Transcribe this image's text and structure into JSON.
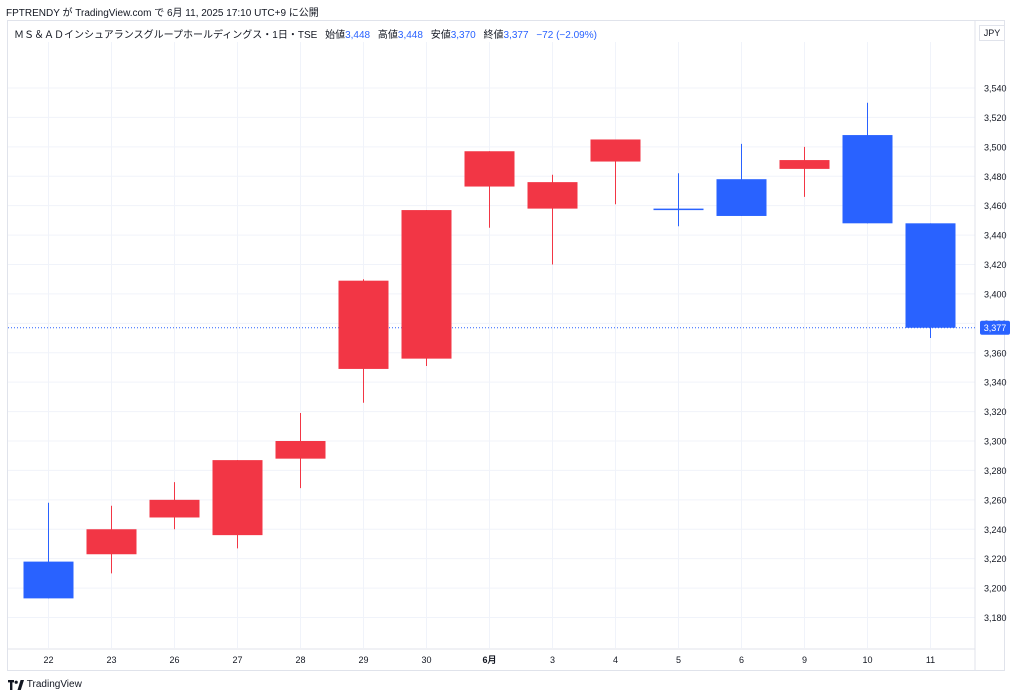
{
  "published_line": "FPTRENDY が TradingView.com で 6月 11, 2025 17:10 UTC+9 に公開",
  "legend": {
    "symbol": "ＭＳ＆ＡＤインシュアランスグループホールディングス・1日・TSE",
    "open_label": "始値",
    "open": "3,448",
    "high_label": "高値",
    "high": "3,448",
    "low_label": "安値",
    "low": "3,370",
    "close_label": "終値",
    "close": "3,377",
    "change": "−72 (−2.09%)"
  },
  "currency": "JPY",
  "footer_brand": "TradingView",
  "colors": {
    "up": "#f23645",
    "down": "#2962ff",
    "grid": "#f0f3fa",
    "price_line": "#2962ff"
  },
  "chart_data": {
    "type": "candlestick",
    "title": "ＭＳ＆ＡＤインシュアランスグループホールディングス・1日・TSE",
    "ylim": [
      3170,
      3550
    ],
    "y_ticks": [
      3180,
      3200,
      3220,
      3240,
      3260,
      3280,
      3300,
      3320,
      3340,
      3360,
      3380,
      3400,
      3420,
      3440,
      3460,
      3480,
      3500,
      3520,
      3540
    ],
    "y_tick_labels": [
      "3,180",
      "3,200",
      "3,220",
      "3,240",
      "3,260",
      "3,280",
      "3,300",
      "3,320",
      "3,340",
      "3,360",
      "3,380",
      "3,400",
      "3,420",
      "3,440",
      "3,460",
      "3,480",
      "3,500",
      "3,520",
      "3,540"
    ],
    "current_price": 3377,
    "current_price_label": "3,377",
    "grid": true,
    "candles": [
      {
        "x": "22",
        "open": 3218,
        "high": 3258,
        "low": 3193,
        "close": 3193
      },
      {
        "x": "23",
        "open": 3223,
        "high": 3256,
        "low": 3210,
        "close": 3240
      },
      {
        "x": "26",
        "open": 3248,
        "high": 3272,
        "low": 3240,
        "close": 3260
      },
      {
        "x": "27",
        "open": 3236,
        "high": 3287,
        "low": 3227,
        "close": 3287
      },
      {
        "x": "28",
        "open": 3288,
        "high": 3319,
        "low": 3268,
        "close": 3300
      },
      {
        "x": "29",
        "open": 3349,
        "high": 3410,
        "low": 3326,
        "close": 3409
      },
      {
        "x": "30",
        "open": 3356,
        "high": 3457,
        "low": 3351,
        "close": 3457
      },
      {
        "x": "6月",
        "open": 3473,
        "high": 3497,
        "low": 3445,
        "close": 3497
      },
      {
        "x": "3",
        "open": 3458,
        "high": 3481,
        "low": 3420,
        "close": 3476
      },
      {
        "x": "4",
        "open": 3490,
        "high": 3505,
        "low": 3461,
        "close": 3505
      },
      {
        "x": "5",
        "open": 3458,
        "high": 3482,
        "low": 3446,
        "close": 3457
      },
      {
        "x": "6",
        "open": 3478,
        "high": 3502,
        "low": 3453,
        "close": 3453
      },
      {
        "x": "9",
        "open": 3485,
        "high": 3500,
        "low": 3466,
        "close": 3491
      },
      {
        "x": "10",
        "open": 3508,
        "high": 3530,
        "low": 3448,
        "close": 3448
      },
      {
        "x": "11",
        "open": 3448,
        "high": 3448,
        "low": 3370,
        "close": 3377
      }
    ]
  }
}
